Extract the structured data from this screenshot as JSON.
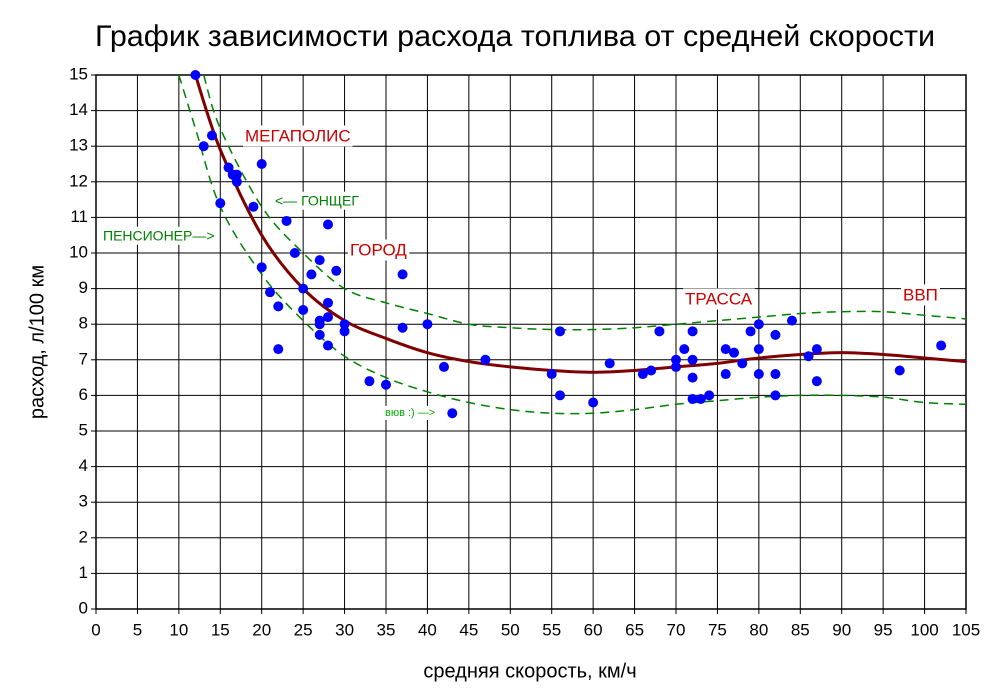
{
  "chart_data": {
    "type": "scatter",
    "title": "График зависимости расхода топлива от средней скорости",
    "x_label": "средняя скорость, км/ч",
    "y_label": "расход, л/100 км",
    "xlim": [
      0,
      105
    ],
    "ylim": [
      0,
      15
    ],
    "xticks": [
      0,
      5,
      10,
      15,
      20,
      25,
      30,
      35,
      40,
      45,
      50,
      55,
      60,
      65,
      70,
      75,
      80,
      85,
      90,
      95,
      100,
      105
    ],
    "yticks": [
      0,
      1,
      2,
      3,
      4,
      5,
      6,
      7,
      8,
      9,
      10,
      11,
      12,
      13,
      14,
      15
    ],
    "grid": true,
    "series": [
      {
        "color": "#0000ff",
        "x": [
          12,
          14,
          13,
          15,
          16,
          16.5,
          17,
          17,
          19,
          20,
          20,
          21,
          22,
          22,
          23,
          24,
          25,
          25,
          26,
          27,
          27,
          27,
          27,
          28,
          28,
          28,
          28,
          29,
          30,
          30,
          33,
          35,
          37,
          37,
          40,
          42,
          43,
          47,
          55,
          56,
          56,
          60,
          62,
          66,
          67,
          68,
          70,
          70,
          71,
          72,
          72,
          72,
          72,
          73,
          74,
          76,
          76,
          77,
          78,
          79,
          80,
          80,
          80,
          82,
          82,
          82,
          84,
          86,
          87,
          87,
          97,
          102
        ],
        "values": [
          15,
          13.3,
          13,
          11.4,
          12.4,
          12.2,
          12,
          12.2,
          11.3,
          12.5,
          9.6,
          8.9,
          8.5,
          7.3,
          10.9,
          10,
          9,
          8.4,
          9.4,
          9.8,
          8.1,
          7.7,
          8,
          10.8,
          8.6,
          8.2,
          7.4,
          9.5,
          8,
          7.8,
          6.4,
          6.3,
          9.4,
          7.9,
          8,
          6.8,
          5.5,
          7,
          6.6,
          7.8,
          6,
          5.8,
          6.9,
          6.6,
          6.7,
          7.8,
          7,
          6.8,
          7.3,
          7.8,
          7,
          6.5,
          5.9,
          5.9,
          6,
          7.3,
          6.6,
          7.2,
          6.9,
          7.8,
          8,
          7.3,
          6.6,
          7.7,
          6.6,
          6,
          8.1,
          7.1,
          7.3,
          6.4,
          6.7,
          7.4
        ]
      }
    ],
    "lines": [
      {
        "color": "#800000",
        "dashed": false,
        "x": [
          12,
          15,
          20,
          25,
          30,
          35,
          40,
          45,
          50,
          55,
          60,
          65,
          70,
          75,
          80,
          85,
          90,
          95,
          100,
          105
        ],
        "values": [
          15,
          12.9,
          10.5,
          9,
          8.1,
          7.6,
          7.2,
          6.95,
          6.8,
          6.7,
          6.65,
          6.7,
          6.8,
          6.9,
          7.05,
          7.15,
          7.2,
          7.15,
          7.05,
          6.95
        ]
      },
      {
        "color": "#008000",
        "dashed": true,
        "x": [
          13,
          15,
          20,
          25,
          30,
          35,
          40,
          45,
          50,
          55,
          60,
          65,
          70,
          75,
          80,
          85,
          90,
          95,
          100,
          105
        ],
        "values": [
          15,
          13.5,
          11.3,
          10,
          9,
          8.6,
          8.3,
          8,
          7.9,
          7.85,
          7.85,
          7.9,
          8,
          8.1,
          8.2,
          8.3,
          8.35,
          8.35,
          8.25,
          8.15
        ]
      },
      {
        "color": "#008000",
        "dashed": true,
        "x": [
          10,
          12,
          15,
          20,
          25,
          30,
          35,
          40,
          45,
          50,
          55,
          60,
          65,
          70,
          75,
          80,
          85,
          90,
          95,
          100,
          105
        ],
        "values": [
          15,
          13.5,
          11.3,
          9.4,
          8.1,
          7.1,
          6.5,
          6.1,
          5.8,
          5.6,
          5.5,
          5.5,
          5.6,
          5.75,
          5.85,
          5.95,
          6,
          6,
          5.95,
          5.8,
          5.75
        ]
      }
    ],
    "annotations": [
      {
        "text": "МЕГАПОЛИС",
        "color": "#cc0000"
      },
      {
        "text": "<— ГОНЩЕГ",
        "color": "#008000"
      },
      {
        "text": "ПЕНСИОНЕР—>",
        "color": "#008000"
      },
      {
        "text": "ГОРОД",
        "color": "#cc0000"
      },
      {
        "text": "ТРАССА",
        "color": "#cc0000"
      },
      {
        "text": "ВВП",
        "color": "#cc0000"
      },
      {
        "text": "вюв :) —>",
        "color": "#00aa00"
      }
    ]
  }
}
